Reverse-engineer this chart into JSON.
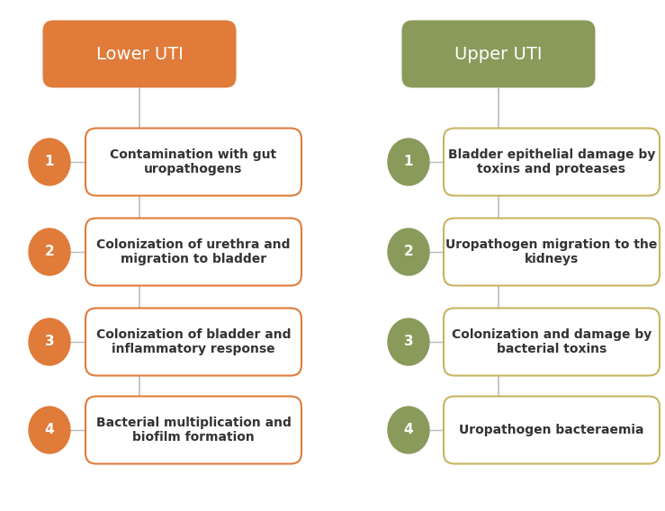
{
  "background_color": "#ffffff",
  "left_header": "Lower UTI",
  "right_header": "Upper UTI",
  "left_header_color": "#E07B3A",
  "right_header_color": "#8A9A5B",
  "left_circle_color": "#E07B3A",
  "right_circle_color": "#8A9A5B",
  "left_box_border_color": "#E07B3A",
  "right_box_border_color": "#C8B560",
  "left_items": [
    "Contamination with gut\nuropathogens",
    "Colonization of urethra and\nmigration to bladder",
    "Colonization of bladder and\ninflammatory response",
    "Bacterial multiplication and\nbiofilm formation"
  ],
  "right_items": [
    "Bladder epithelial damage by\ntoxins and proteases",
    "Uropathogen migration to the\nkidneys",
    "Colonization and damage by\nbacterial toxins",
    "Uropathogen bacteraemia"
  ],
  "text_color": "#333333",
  "header_text_color": "#ffffff",
  "line_color": "#bbbbbb",
  "fig_width": 7.39,
  "fig_height": 5.68,
  "dpi": 100
}
